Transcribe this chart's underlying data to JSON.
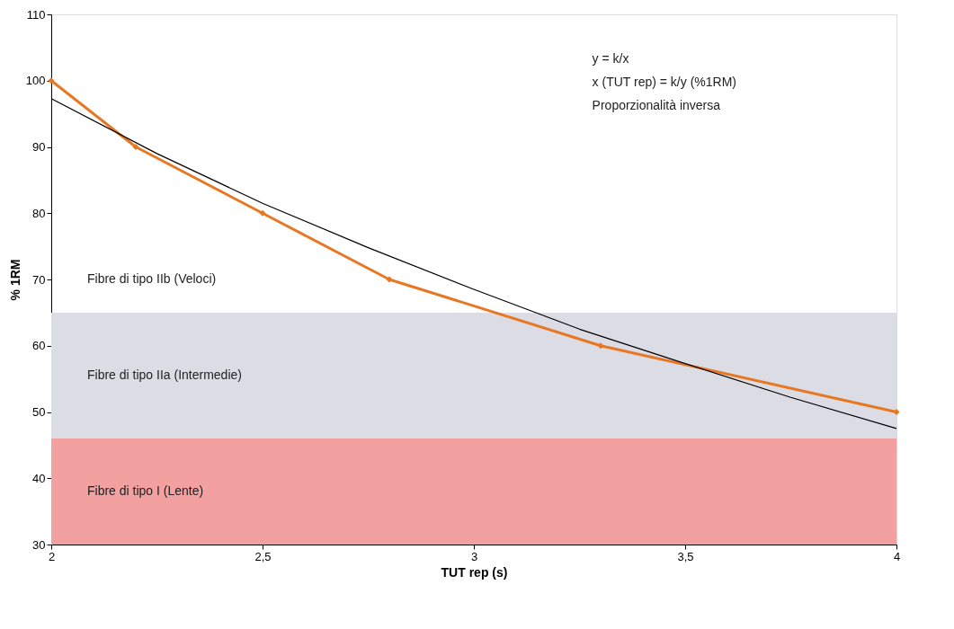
{
  "chart_data": {
    "type": "line",
    "xlabel": "TUT rep (s)",
    "ylabel": "% 1RM",
    "xlim": [
      2,
      4
    ],
    "ylim": [
      30,
      110
    ],
    "xticks": [
      2,
      {
        "value": 2.5,
        "label": "2,5"
      },
      3,
      {
        "value": 3.5,
        "label": "3,5"
      },
      4
    ],
    "yticks": [
      30,
      40,
      50,
      60,
      70,
      80,
      90,
      100,
      110
    ],
    "grid": false,
    "series": [
      {
        "color": "#e87722",
        "marker": "diamond",
        "x": [
          2,
          2.2,
          2.5,
          2.8,
          3.3,
          4
        ],
        "values": [
          100,
          90,
          80,
          70,
          60,
          50
        ]
      },
      {
        "color": "#000000",
        "marker": "none",
        "x": [
          2,
          2.25,
          2.5,
          2.75,
          3,
          3.25,
          3.5,
          3.75,
          4
        ],
        "values": [
          97.3,
          89,
          81.5,
          74.8,
          68.5,
          62.5,
          57.3,
          52.2,
          47.5
        ]
      }
    ],
    "bands": [
      {
        "axis": "y",
        "from": 30,
        "to": 46,
        "label": "Fibre di tipo I (Lente)",
        "color": "#f2a0a0"
      },
      {
        "axis": "y",
        "from": 46,
        "to": 65,
        "label": "Fibre di tipo IIa (Intermedie)",
        "color": "#dcdce4"
      }
    ],
    "annotations": [
      "Fibre di tipo IIb (Veloci)",
      "y = k/x",
      "x (TUT rep) = k/y (%1RM)",
      "Proporzionalità inversa"
    ]
  }
}
